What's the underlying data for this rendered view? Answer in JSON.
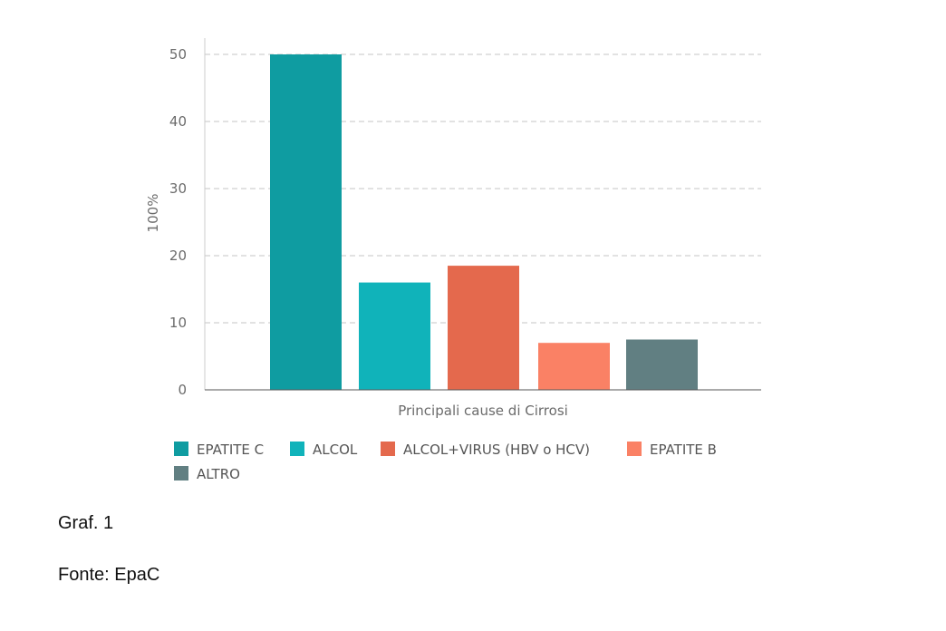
{
  "chart_data": {
    "type": "bar",
    "ylabel": "100%",
    "xlabel": "Principali cause di Cirrosi",
    "ylim": [
      0,
      52
    ],
    "yticks": [
      0,
      10,
      20,
      30,
      40,
      50
    ],
    "grid": true,
    "legend_position": "bottom",
    "categories": [
      "EPATITE C",
      "ALCOL",
      "ALCOL+VIRUS (HBV o HCV)",
      "EPATITE B",
      "ALTRO"
    ],
    "values": [
      50,
      16,
      18.5,
      7,
      7.5
    ],
    "colors": [
      "#0f9ca1",
      "#10b3ba",
      "#e4694d",
      "#fa8165",
      "#617f82"
    ]
  },
  "captions": {
    "graf": "Graf. 1",
    "fonte": "Fonte: EpaC"
  }
}
